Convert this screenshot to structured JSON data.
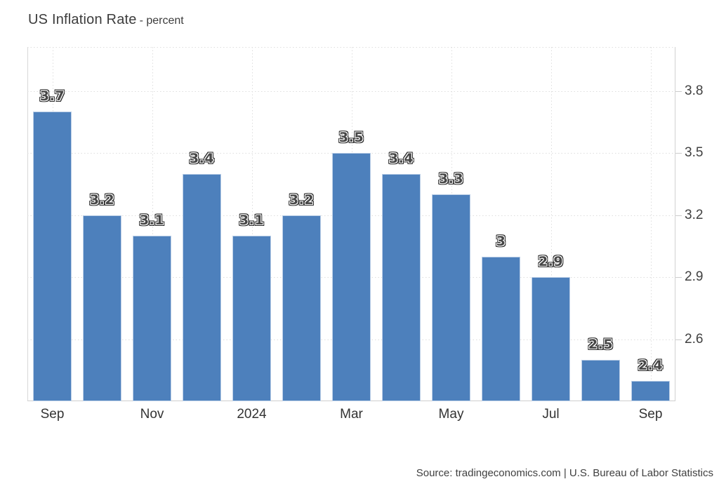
{
  "header": {
    "title": "US Inflation Rate",
    "subtitle": "- percent"
  },
  "footer": {
    "source": "Source: tradingeconomics.com | U.S. Bureau of Labor Statistics"
  },
  "chart_data": {
    "type": "bar",
    "title": "US Inflation Rate",
    "ylabel_unit": "percent",
    "categories": [
      "Sep",
      "",
      "Nov",
      "",
      "2024",
      "",
      "Mar",
      "",
      "May",
      "",
      "Jul",
      "",
      "Sep"
    ],
    "values": [
      3.7,
      3.2,
      3.1,
      3.4,
      3.1,
      3.2,
      3.5,
      3.4,
      3.3,
      3,
      2.9,
      2.5,
      2.4
    ],
    "value_labels": [
      "3.7",
      "3.2",
      "3.1",
      "3.4",
      "3.1",
      "3.2",
      "3.5",
      "3.4",
      "3.3",
      "3",
      "2.9",
      "2.5",
      "2.4"
    ],
    "y_ticks": [
      3.8,
      3.5,
      3.2,
      2.9,
      2.6
    ],
    "ylim": [
      2.3,
      4.012
    ],
    "grid": "dotted",
    "legend": "none",
    "y_axis_side": "right",
    "bar_color": "#4d80bc",
    "bar_border_color": "#bccfe7",
    "grid_color": "#dedede",
    "axis_color": "#d2d2d2",
    "text_color": "#3f3f3f"
  }
}
